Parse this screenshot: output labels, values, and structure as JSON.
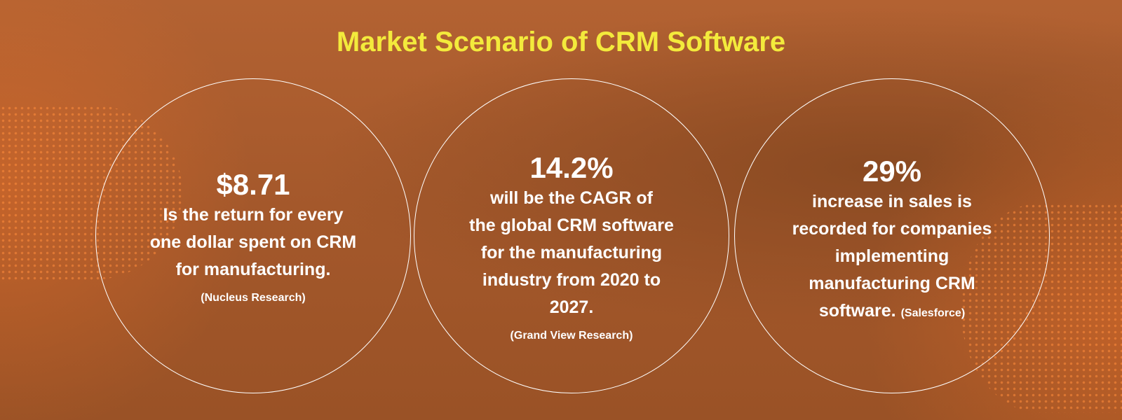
{
  "header": {
    "title": "Market Scenario of CRM Software"
  },
  "stats": [
    {
      "value": "$8.71",
      "lines": [
        "Is the return for every",
        "one dollar spent on CRM",
        "for manufacturing."
      ],
      "source": "(Nucleus Research)"
    },
    {
      "value": "14.2%",
      "lines": [
        "will be the CAGR of",
        "the global CRM software",
        "for the manufacturing",
        "industry from 2020 to",
        "2027."
      ],
      "source": "(Grand View Research)"
    },
    {
      "value": "29%",
      "lines": [
        "increase in sales is",
        "recorded for companies",
        "implementing",
        "manufacturing CRM",
        "software."
      ],
      "source": "(Salesforce)"
    }
  ]
}
